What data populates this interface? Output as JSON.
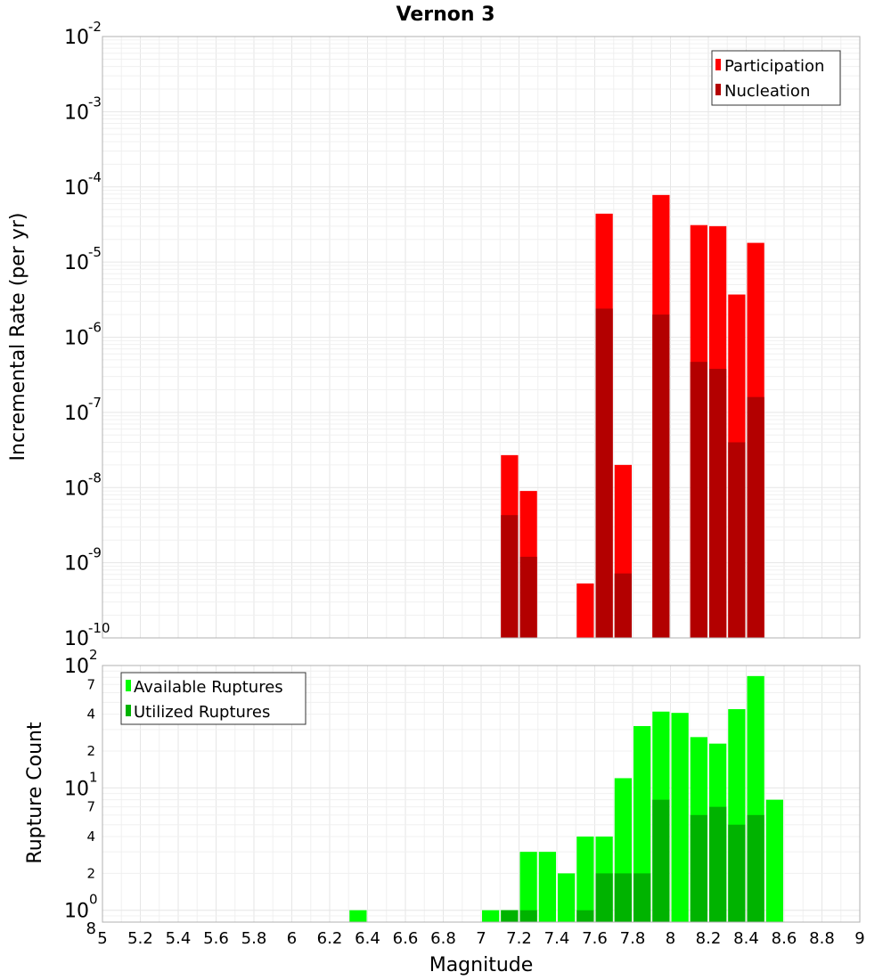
{
  "chart_data": [
    {
      "type": "bar",
      "title": "Vernon 3",
      "ylabel": "Incremental Rate (per yr)",
      "xlabel": "",
      "xlim": [
        5,
        9
      ],
      "ylim": [
        1e-10,
        0.01
      ],
      "yscale": "log",
      "bar_width": 0.1,
      "y_tick_exponents": [
        "-10",
        "-9",
        "-8",
        "-7",
        "-6",
        "-5",
        "-4",
        "-3",
        "-2"
      ],
      "legend": {
        "placement": "top-right",
        "entries": [
          "Participation",
          "Nucleation"
        ]
      },
      "series": [
        {
          "name": "Participation",
          "color": "#ff0000",
          "points": [
            {
              "x": 7.15,
              "y": 2.7e-08
            },
            {
              "x": 7.25,
              "y": 9e-09
            },
            {
              "x": 7.55,
              "y": 5.3e-10
            },
            {
              "x": 7.65,
              "y": 4.4e-05
            },
            {
              "x": 7.75,
              "y": 2e-08
            },
            {
              "x": 7.95,
              "y": 7.8e-05
            },
            {
              "x": 8.15,
              "y": 3.1e-05
            },
            {
              "x": 8.25,
              "y": 3e-05
            },
            {
              "x": 8.35,
              "y": 3.7e-06
            },
            {
              "x": 8.45,
              "y": 1.8e-05
            }
          ]
        },
        {
          "name": "Nucleation",
          "color": "#b30000",
          "points": [
            {
              "x": 7.15,
              "y": 4.3e-09
            },
            {
              "x": 7.25,
              "y": 1.2e-09
            },
            {
              "x": 7.65,
              "y": 2.4e-06
            },
            {
              "x": 7.75,
              "y": 7.2e-10
            },
            {
              "x": 7.95,
              "y": 2e-06
            },
            {
              "x": 8.15,
              "y": 4.7e-07
            },
            {
              "x": 8.25,
              "y": 3.8e-07
            },
            {
              "x": 8.35,
              "y": 4e-08
            },
            {
              "x": 8.45,
              "y": 1.6e-07
            }
          ]
        }
      ]
    },
    {
      "type": "bar",
      "title": "",
      "ylabel": "Rupture Count",
      "xlabel": "Magnitude",
      "xlim": [
        5,
        9
      ],
      "ylim": [
        0.8,
        100
      ],
      "yscale": "log",
      "bar_width": 0.1,
      "x_ticks": [
        "5",
        "5.2",
        "5.4",
        "5.6",
        "5.8",
        "6",
        "6.2",
        "6.4",
        "6.6",
        "6.8",
        "7",
        "7.2",
        "7.4",
        "7.6",
        "7.8",
        "8",
        "8.2",
        "8.4",
        "8.6",
        "8.8",
        "9"
      ],
      "y_tick_exponents": [
        "0",
        "1",
        "2"
      ],
      "y_minor_ticks": [
        {
          "value": 2,
          "label": "2"
        },
        {
          "value": 4,
          "label": "4"
        },
        {
          "value": 7,
          "label": "7"
        },
        {
          "value": 20,
          "label": "2"
        },
        {
          "value": 40,
          "label": "4"
        },
        {
          "value": 70,
          "label": "7"
        }
      ],
      "y_bottom_label": "8",
      "legend": {
        "placement": "top-left",
        "entries": [
          "Available Ruptures",
          "Utilized Ruptures"
        ]
      },
      "series": [
        {
          "name": "Available Ruptures",
          "color": "#00ff00",
          "points": [
            {
              "x": 6.35,
              "y": 1
            },
            {
              "x": 7.05,
              "y": 1
            },
            {
              "x": 7.15,
              "y": 1
            },
            {
              "x": 7.25,
              "y": 3
            },
            {
              "x": 7.35,
              "y": 3
            },
            {
              "x": 7.45,
              "y": 2
            },
            {
              "x": 7.55,
              "y": 4
            },
            {
              "x": 7.65,
              "y": 4
            },
            {
              "x": 7.75,
              "y": 12
            },
            {
              "x": 7.85,
              "y": 32
            },
            {
              "x": 7.95,
              "y": 42
            },
            {
              "x": 8.05,
              "y": 41
            },
            {
              "x": 8.15,
              "y": 26
            },
            {
              "x": 8.25,
              "y": 23
            },
            {
              "x": 8.35,
              "y": 44
            },
            {
              "x": 8.45,
              "y": 82
            },
            {
              "x": 8.55,
              "y": 8
            }
          ]
        },
        {
          "name": "Utilized Ruptures",
          "color": "#00b300",
          "points": [
            {
              "x": 7.15,
              "y": 1
            },
            {
              "x": 7.25,
              "y": 1
            },
            {
              "x": 7.55,
              "y": 1
            },
            {
              "x": 7.65,
              "y": 2
            },
            {
              "x": 7.75,
              "y": 2
            },
            {
              "x": 7.85,
              "y": 2
            },
            {
              "x": 7.95,
              "y": 8
            },
            {
              "x": 8.15,
              "y": 6
            },
            {
              "x": 8.25,
              "y": 7
            },
            {
              "x": 8.35,
              "y": 5
            },
            {
              "x": 8.45,
              "y": 6
            }
          ]
        }
      ]
    }
  ]
}
